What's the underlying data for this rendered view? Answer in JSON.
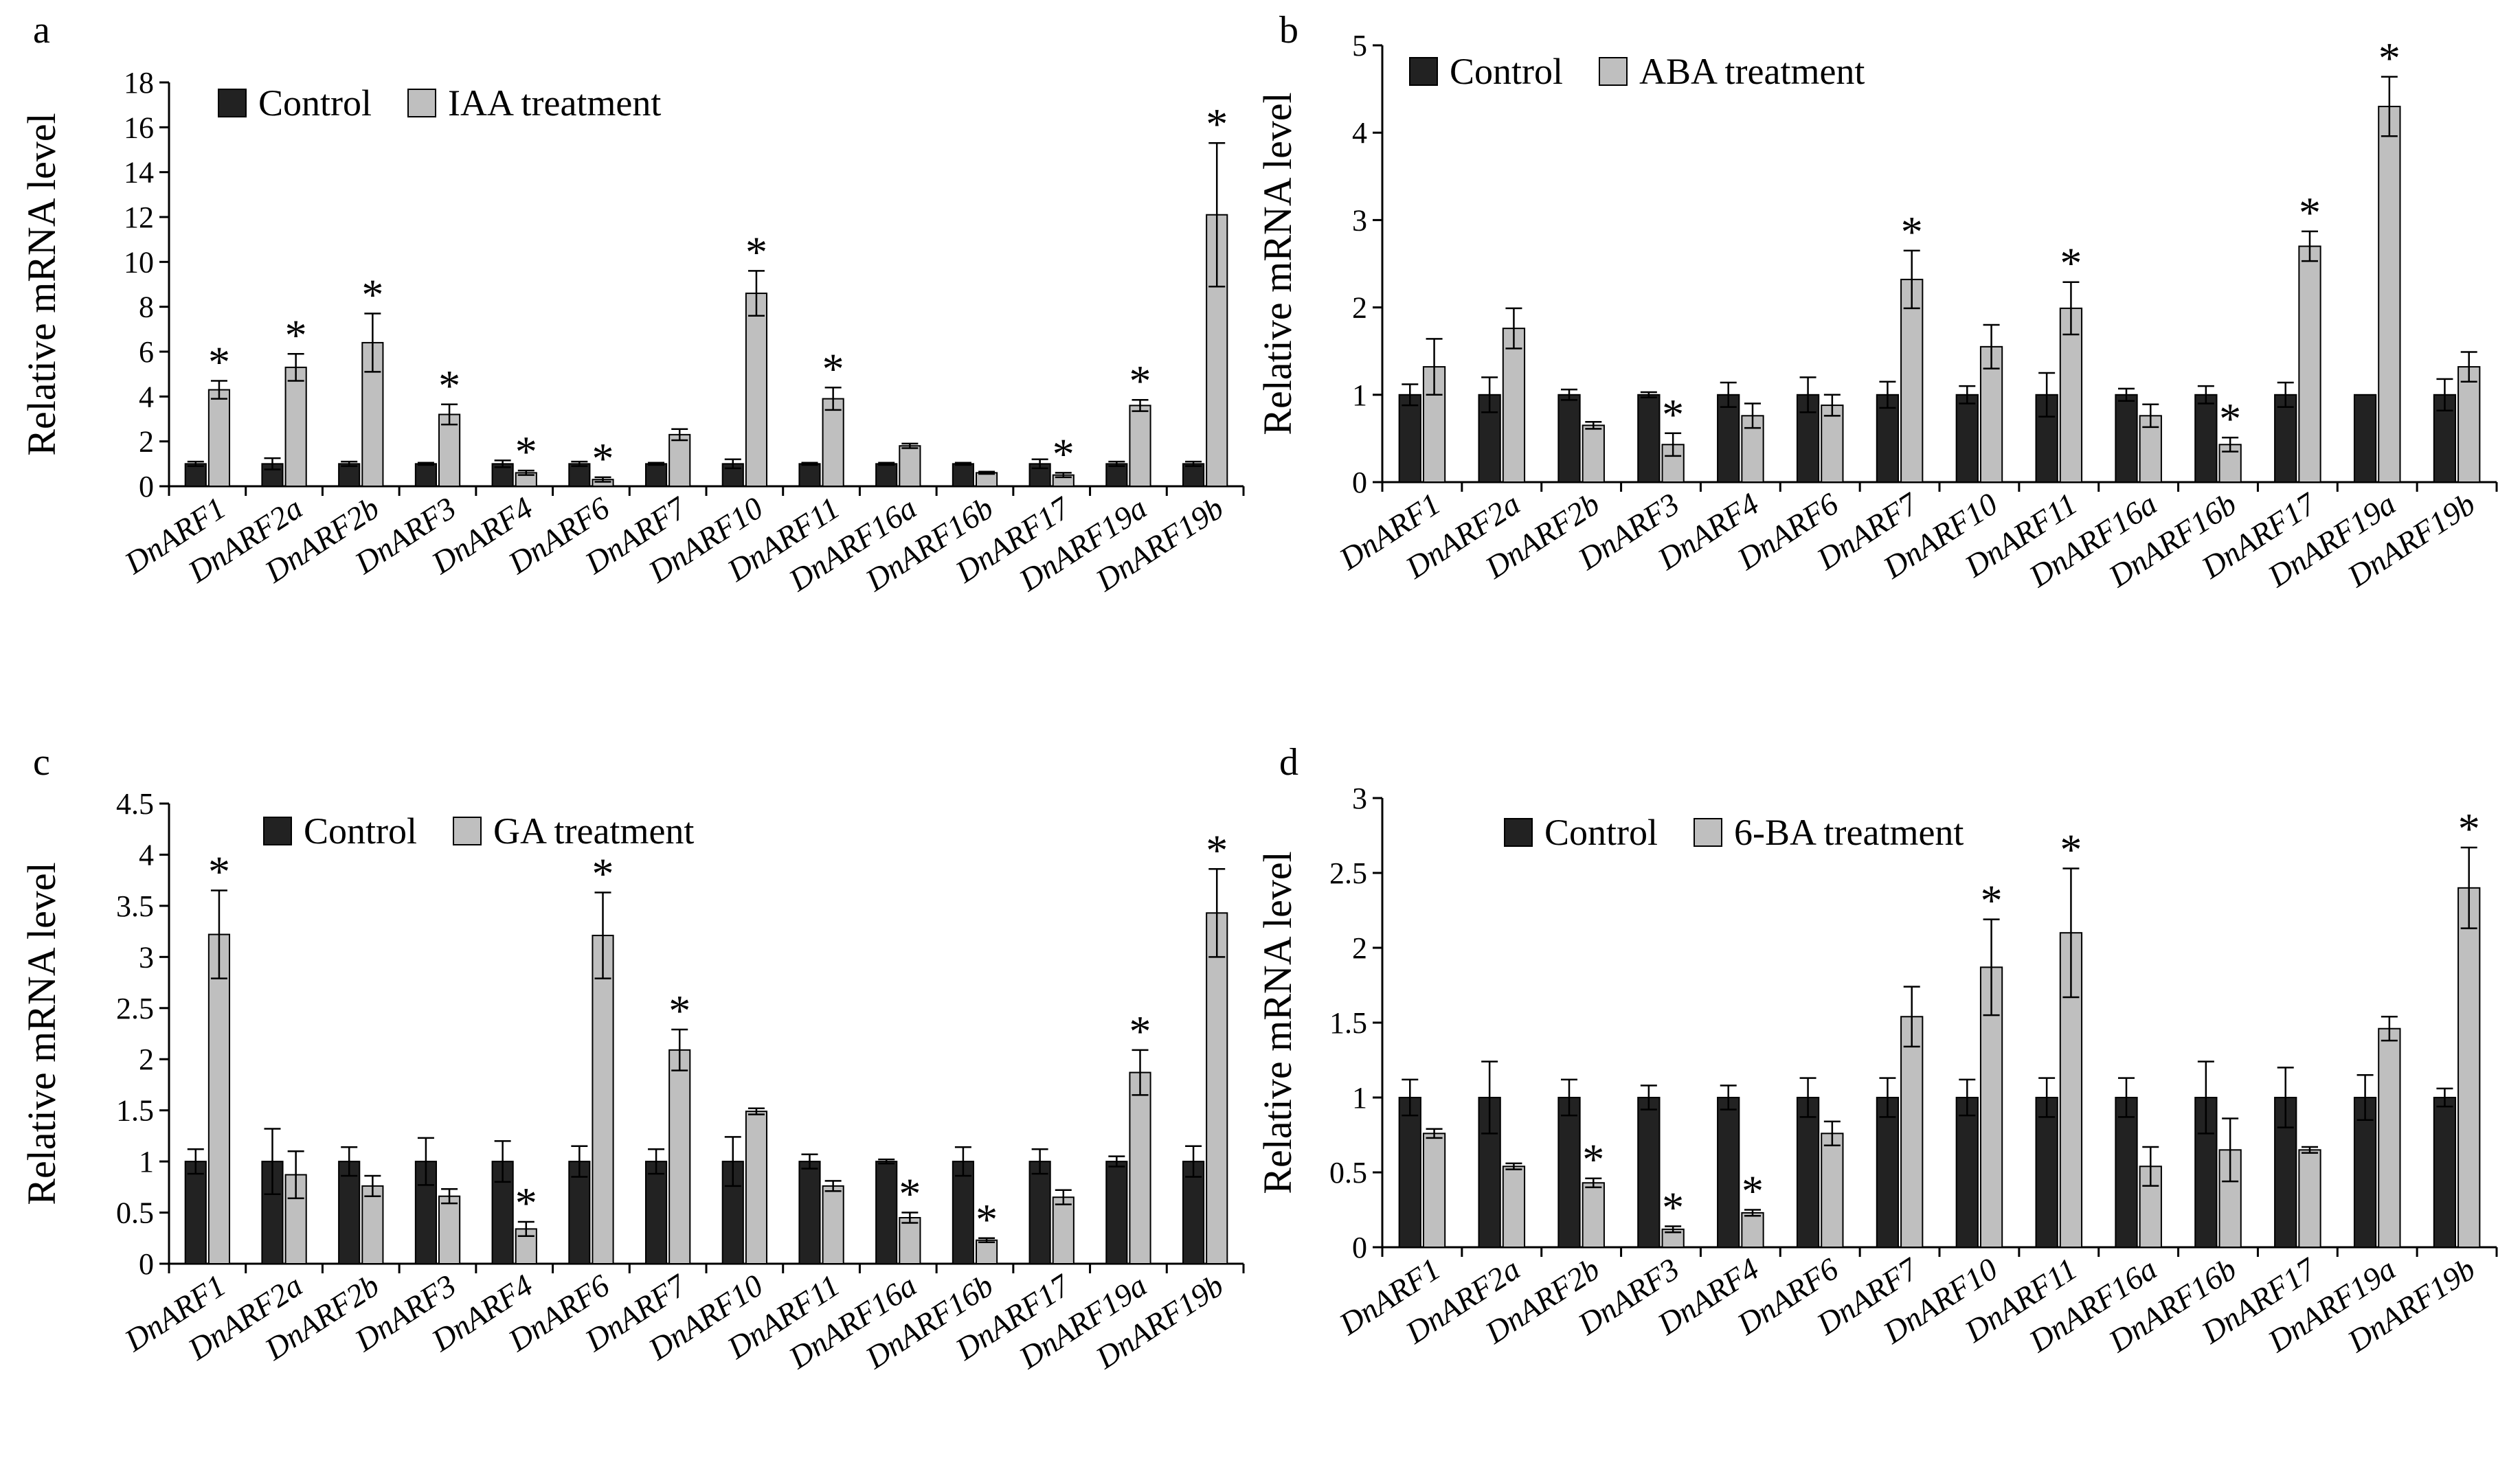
{
  "chart_data": [
    {
      "panel": "a",
      "type": "bar",
      "ylabel": "Relative mRNA level",
      "ylim": [
        0,
        18
      ],
      "yticks": [
        0,
        2,
        4,
        6,
        8,
        10,
        12,
        14,
        16,
        18
      ],
      "grid": false,
      "legend_position": "top-left",
      "categories": [
        "DnARF1",
        "DnARF2a",
        "DnARF2b",
        "DnARF3",
        "DnARF4",
        "DnARF6",
        "DnARF7",
        "DnARF10",
        "DnARF11",
        "DnARF16a",
        "DnARF16b",
        "DnARF17",
        "DnARF19a",
        "DnARF19b"
      ],
      "series": [
        {
          "name": "Control",
          "color": "#222222",
          "values": [
            1.0,
            1.0,
            1.0,
            1.0,
            1.0,
            1.0,
            1.0,
            1.0,
            1.0,
            1.0,
            1.0,
            1.0,
            1.0,
            1.0
          ],
          "errors": [
            0.1,
            0.25,
            0.1,
            0.05,
            0.15,
            0.1,
            0.05,
            0.2,
            0.05,
            0.05,
            0.05,
            0.2,
            0.1,
            0.1
          ],
          "significant": [
            false,
            false,
            false,
            false,
            false,
            false,
            false,
            false,
            false,
            false,
            false,
            false,
            false,
            false
          ]
        },
        {
          "name": "IAA treatment",
          "color": "#bfbfbf",
          "values": [
            4.3,
            5.3,
            6.4,
            3.2,
            0.6,
            0.3,
            2.3,
            8.6,
            3.9,
            1.8,
            0.6,
            0.5,
            3.6,
            12.1
          ],
          "errors": [
            0.4,
            0.6,
            1.3,
            0.45,
            0.1,
            0.1,
            0.25,
            1.0,
            0.5,
            0.1,
            0.05,
            0.1,
            0.25,
            3.2
          ],
          "significant": [
            true,
            true,
            true,
            true,
            true,
            true,
            false,
            true,
            true,
            false,
            false,
            true,
            true,
            true
          ]
        }
      ]
    },
    {
      "panel": "b",
      "type": "bar",
      "ylabel": "Relative mRNA level",
      "ylim": [
        0,
        5
      ],
      "yticks": [
        0,
        1,
        2,
        3,
        4,
        5
      ],
      "grid": false,
      "legend_position": "top-left",
      "categories": [
        "DnARF1",
        "DnARF2a",
        "DnARF2b",
        "DnARF3",
        "DnARF4",
        "DnARF6",
        "DnARF7",
        "DnARF10",
        "DnARF11",
        "DnARF16a",
        "DnARF16b",
        "DnARF17",
        "DnARF19a",
        "DnARF19b"
      ],
      "series": [
        {
          "name": "Control",
          "color": "#222222",
          "values": [
            1.0,
            1.0,
            1.0,
            1.0,
            1.0,
            1.0,
            1.0,
            1.0,
            1.0,
            1.0,
            1.0,
            1.0,
            1.0,
            1.0
          ],
          "errors": [
            0.12,
            0.2,
            0.06,
            0.03,
            0.14,
            0.2,
            0.15,
            0.1,
            0.25,
            0.07,
            0.1,
            0.14,
            0.0,
            0.18
          ],
          "significant": [
            false,
            false,
            false,
            false,
            false,
            false,
            false,
            false,
            false,
            false,
            false,
            false,
            false,
            false
          ]
        },
        {
          "name": "ABA treatment",
          "color": "#bfbfbf",
          "values": [
            1.32,
            1.76,
            0.65,
            0.43,
            0.76,
            0.88,
            2.32,
            1.55,
            1.99,
            0.76,
            0.43,
            2.7,
            4.3,
            1.32
          ],
          "errors": [
            0.32,
            0.23,
            0.04,
            0.13,
            0.14,
            0.12,
            0.33,
            0.25,
            0.3,
            0.13,
            0.08,
            0.17,
            0.34,
            0.17
          ],
          "significant": [
            false,
            false,
            false,
            true,
            false,
            false,
            true,
            false,
            true,
            false,
            true,
            true,
            true,
            false
          ]
        }
      ]
    },
    {
      "panel": "c",
      "type": "bar",
      "ylabel": "Relative mRNA level",
      "ylim": [
        0,
        4.5
      ],
      "yticks": [
        0,
        0.5,
        1,
        1.5,
        2,
        2.5,
        3,
        3.5,
        4,
        4.5
      ],
      "grid": false,
      "legend_position": "top-left",
      "categories": [
        "DnARF1",
        "DnARF2a",
        "DnARF2b",
        "DnARF3",
        "DnARF4",
        "DnARF6",
        "DnARF7",
        "DnARF10",
        "DnARF11",
        "DnARF16a",
        "DnARF16b",
        "DnARF17",
        "DnARF19a",
        "DnARF19b"
      ],
      "series": [
        {
          "name": "Control",
          "color": "#222222",
          "values": [
            1.0,
            1.0,
            1.0,
            1.0,
            1.0,
            1.0,
            1.0,
            1.0,
            1.0,
            1.0,
            1.0,
            1.0,
            1.0,
            1.0
          ],
          "errors": [
            0.12,
            0.32,
            0.14,
            0.23,
            0.2,
            0.15,
            0.12,
            0.24,
            0.07,
            0.02,
            0.14,
            0.12,
            0.05,
            0.15
          ],
          "significant": [
            false,
            false,
            false,
            false,
            false,
            false,
            false,
            false,
            false,
            false,
            false,
            false,
            false,
            false
          ]
        },
        {
          "name": "GA treatment",
          "color": "#bfbfbf",
          "values": [
            3.22,
            0.87,
            0.76,
            0.66,
            0.34,
            3.21,
            2.09,
            1.49,
            0.76,
            0.45,
            0.23,
            0.65,
            1.87,
            3.43
          ],
          "errors": [
            0.43,
            0.23,
            0.1,
            0.07,
            0.07,
            0.42,
            0.2,
            0.03,
            0.05,
            0.05,
            0.02,
            0.07,
            0.22,
            0.43
          ],
          "significant": [
            true,
            false,
            false,
            false,
            true,
            true,
            true,
            false,
            false,
            true,
            true,
            false,
            true,
            true
          ]
        }
      ]
    },
    {
      "panel": "d",
      "type": "bar",
      "ylabel": "Relative mRNA level",
      "ylim": [
        0,
        3
      ],
      "yticks": [
        0,
        0.5,
        1,
        1.5,
        2,
        2.5,
        3
      ],
      "grid": false,
      "legend_position": "top-left",
      "categories": [
        "DnARF1",
        "DnARF2a",
        "DnARF2b",
        "DnARF3",
        "DnARF4",
        "DnARF6",
        "DnARF7",
        "DnARF10",
        "DnARF11",
        "DnARF16a",
        "DnARF16b",
        "DnARF17",
        "DnARF19a",
        "DnARF19b"
      ],
      "series": [
        {
          "name": "Control",
          "color": "#222222",
          "values": [
            1.0,
            1.0,
            1.0,
            1.0,
            1.0,
            1.0,
            1.0,
            1.0,
            1.0,
            1.0,
            1.0,
            1.0,
            1.0,
            1.0
          ],
          "errors": [
            0.12,
            0.24,
            0.12,
            0.08,
            0.08,
            0.13,
            0.13,
            0.12,
            0.13,
            0.13,
            0.24,
            0.2,
            0.15,
            0.06
          ],
          "significant": [
            false,
            false,
            false,
            false,
            false,
            false,
            false,
            false,
            false,
            false,
            false,
            false,
            false,
            false
          ]
        },
        {
          "name": "6-BA treatment",
          "color": "#bfbfbf",
          "values": [
            0.76,
            0.54,
            0.43,
            0.12,
            0.23,
            0.76,
            1.54,
            1.87,
            2.1,
            0.54,
            0.65,
            0.65,
            1.46,
            2.4
          ],
          "errors": [
            0.03,
            0.02,
            0.03,
            0.02,
            0.02,
            0.08,
            0.2,
            0.32,
            0.43,
            0.13,
            0.21,
            0.02,
            0.08,
            0.27
          ],
          "significant": [
            false,
            false,
            true,
            true,
            true,
            false,
            false,
            true,
            true,
            false,
            false,
            false,
            false,
            true
          ]
        }
      ]
    }
  ],
  "panels": [
    {
      "letter": "a"
    },
    {
      "letter": "b"
    },
    {
      "letter": "c"
    },
    {
      "letter": "d"
    }
  ],
  "marks": {
    "significance": "*"
  }
}
